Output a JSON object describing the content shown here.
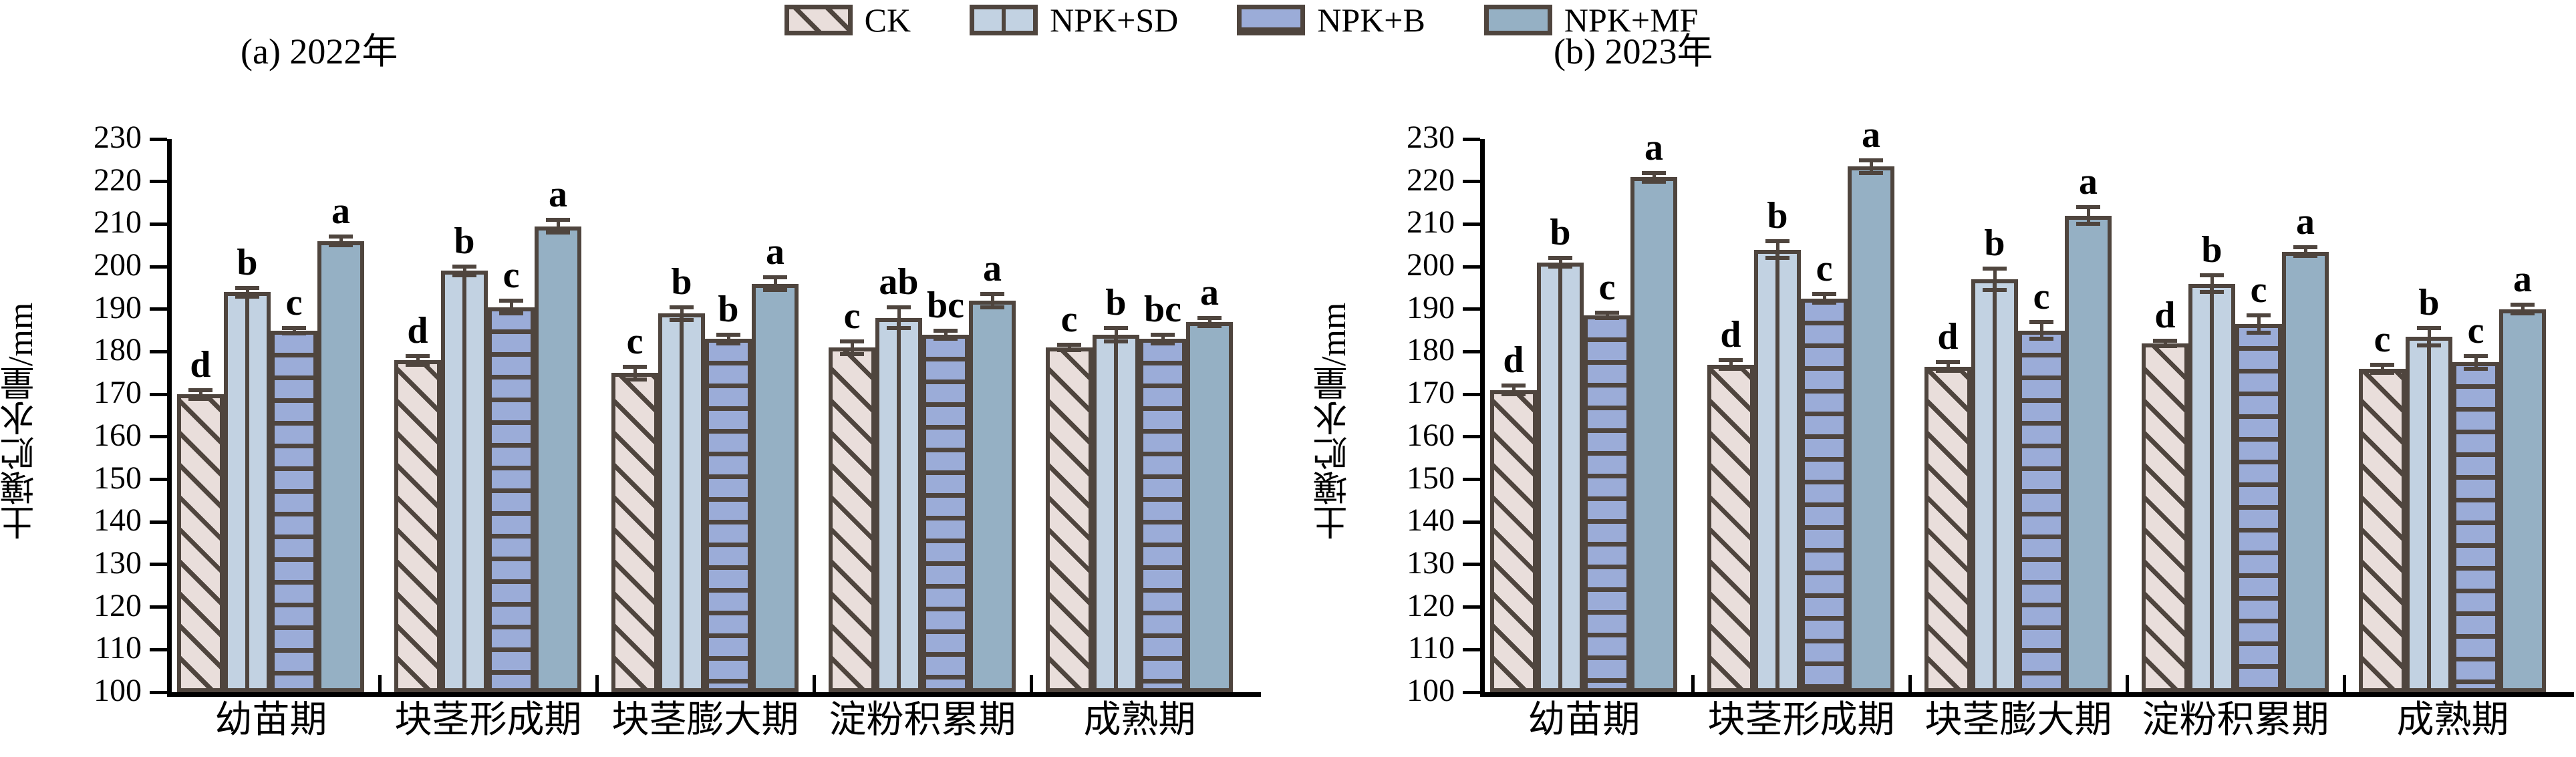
{
  "chart_data": {
    "type": "bar",
    "title": "",
    "ylabel": "土壤贮水量/mm",
    "xlabel": "",
    "ylim": [
      100,
      230
    ],
    "ytick_step": 10,
    "yticks": [
      100,
      110,
      120,
      130,
      140,
      150,
      160,
      170,
      180,
      190,
      200,
      210,
      220,
      230
    ],
    "grid": false,
    "legend_position": "top-center",
    "legend": [
      "CK",
      "NPK+SD",
      "NPK+B",
      "NPK+MF"
    ],
    "categories": [
      "幼苗期",
      "块茎形成期",
      "块茎膨大期",
      "淀粉积累期",
      "成熟期"
    ],
    "panels": [
      {
        "title": "(a) 2022年",
        "series": [
          {
            "name": "CK",
            "values": [
              170,
              178,
              175,
              181,
              181
            ],
            "errors": [
              1,
              1,
              1.5,
              1.5,
              0.5
            ],
            "letters": [
              "d",
              "d",
              "c",
              "c",
              "c"
            ]
          },
          {
            "name": "NPK+SD",
            "values": [
              194,
              199,
              189,
              188,
              184
            ],
            "errors": [
              1,
              1,
              1.5,
              2.5,
              1.5
            ],
            "letters": [
              "b",
              "b",
              "b",
              "ab",
              "b"
            ]
          },
          {
            "name": "NPK+B",
            "values": [
              185,
              190.5,
              183,
              184,
              183
            ],
            "errors": [
              0.5,
              1.5,
              1,
              1,
              1
            ],
            "letters": [
              "c",
              "c",
              "b",
              "bc",
              "bc"
            ]
          },
          {
            "name": "NPK+MF",
            "values": [
              206,
              209.5,
              196,
              192,
              187
            ],
            "errors": [
              1,
              1.5,
              1.5,
              1.5,
              1
            ],
            "letters": [
              "a",
              "a",
              "a",
              "a",
              "a"
            ]
          }
        ]
      },
      {
        "title": "(b) 2023年",
        "series": [
          {
            "name": "CK",
            "values": [
              171,
              177,
              176.5,
              182,
              176
            ],
            "errors": [
              1,
              1,
              1,
              0.5,
              1
            ],
            "letters": [
              "d",
              "d",
              "d",
              "d",
              "c"
            ]
          },
          {
            "name": "NPK+SD",
            "values": [
              201,
              204,
              197,
              196,
              183.5
            ],
            "errors": [
              1,
              2,
              2.5,
              2,
              2
            ],
            "letters": [
              "b",
              "b",
              "b",
              "b",
              "b"
            ]
          },
          {
            "name": "NPK+B",
            "values": [
              188.5,
              192.5,
              185,
              186.5,
              177.5
            ],
            "errors": [
              0.5,
              1,
              2,
              2,
              1.5
            ],
            "letters": [
              "c",
              "c",
              "c",
              "c",
              "c"
            ]
          },
          {
            "name": "NPK+MF",
            "values": [
              221,
              223.5,
              212,
              203.5,
              190
            ],
            "errors": [
              1,
              1.5,
              2,
              1,
              1
            ],
            "letters": [
              "a",
              "a",
              "a",
              "a",
              "a"
            ]
          }
        ]
      }
    ],
    "colors": {
      "CK": "#e9dedb",
      "NPK+SD": "#c2d2e2",
      "NPK+B": "#9bacd8",
      "NPK+MF": "#95b0c4",
      "outline": "#4f453e",
      "axis": "#000000"
    },
    "patterns": {
      "CK": "diagonal-hatch",
      "NPK+SD": "vertical-line",
      "NPK+B": "horizontal-lines",
      "NPK+MF": "solid"
    }
  }
}
